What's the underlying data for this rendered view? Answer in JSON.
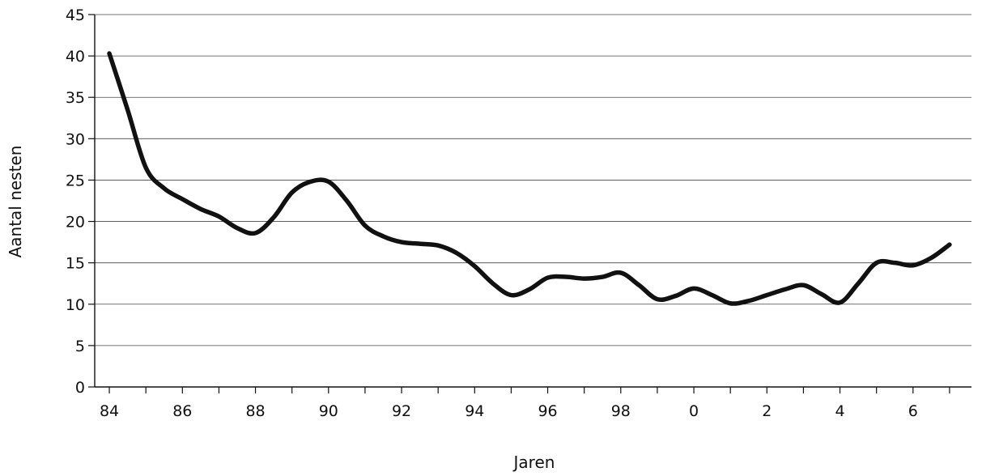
{
  "chart_data": {
    "type": "line",
    "title": "",
    "xlabel": "Jaren",
    "ylabel": "Aantal nesten",
    "xlim": [
      1983.6,
      2007.6
    ],
    "ylim": [
      0,
      45
    ],
    "yticks": [
      0,
      5,
      10,
      15,
      20,
      25,
      30,
      35,
      40,
      45
    ],
    "xtick_positions": [
      1984,
      1986,
      1988,
      1990,
      1992,
      1994,
      1996,
      1998,
      2000,
      2002,
      2004,
      2006
    ],
    "xtick_labels": [
      "84",
      "86",
      "88",
      "90",
      "92",
      "94",
      "96",
      "98",
      "0",
      "2",
      "4",
      "6"
    ],
    "grid": true,
    "legend": "none",
    "line_color": "#111111",
    "grid_color": "#444444",
    "series": [
      {
        "x": [
          1984,
          1984.5,
          1985,
          1985.5,
          1986,
          1986.5,
          1987,
          1987.5,
          1988,
          1988.5,
          1989,
          1989.5,
          1990,
          1990.5,
          1991,
          1991.5,
          1992,
          1992.5,
          1993,
          1993.5,
          1994,
          1994.5,
          1995,
          1995.5,
          1996,
          1996.5,
          1997,
          1997.5,
          1998,
          1998.5,
          1999,
          1999.5,
          2000,
          2000.5,
          2001,
          2001.5,
          2002,
          2002.5,
          2003,
          2003.5,
          2004,
          2004.5,
          2005,
          2005.5,
          2006,
          2006.5,
          2007
        ],
        "y": [
          40.3,
          33.5,
          26.5,
          24.0,
          22.7,
          21.5,
          20.6,
          19.2,
          18.6,
          20.5,
          23.5,
          24.8,
          24.8,
          22.5,
          19.5,
          18.2,
          17.5,
          17.3,
          17.1,
          16.2,
          14.6,
          12.5,
          11.1,
          11.8,
          13.2,
          13.3,
          13.1,
          13.3,
          13.8,
          12.3,
          10.6,
          11.0,
          11.9,
          11.1,
          10.1,
          10.4,
          11.1,
          11.8,
          12.3,
          11.2,
          10.2,
          12.5,
          15.0,
          15.0,
          14.7,
          15.6,
          17.2
        ]
      }
    ]
  }
}
